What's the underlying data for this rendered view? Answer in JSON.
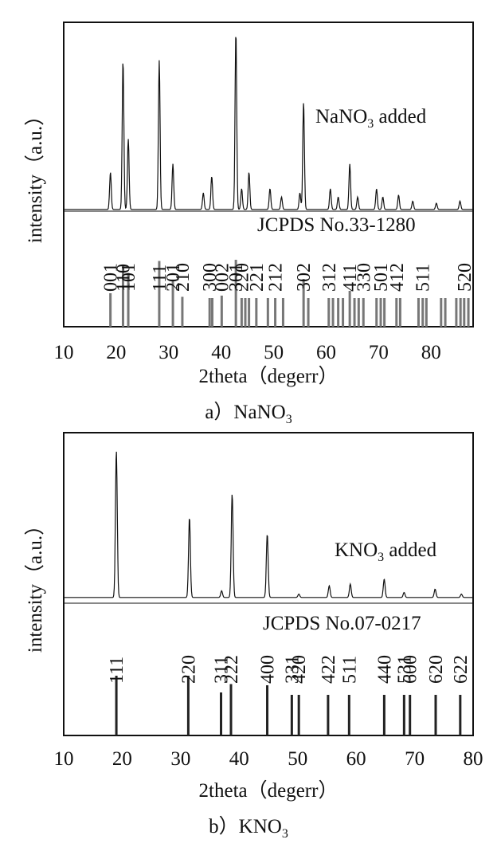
{
  "figure": {
    "panels": [
      {
        "caption_prefix": "a）",
        "caption_formula": "NaNO",
        "caption_sub": "3"
      },
      {
        "caption_prefix": "b）",
        "caption_formula": "KNO",
        "caption_sub": "3"
      }
    ]
  },
  "chart_data": [
    {
      "type": "line",
      "xlabel": "2theta（degerr）",
      "ylabel": "intensity（a.u.）",
      "xlim": [
        10,
        88
      ],
      "xticks": [
        10,
        20,
        30,
        40,
        50,
        60,
        70,
        80
      ],
      "ylim": [
        0,
        1
      ],
      "series": [
        {
          "name": "NaNO3 added",
          "label_formula": "NaNO",
          "label_sub": "3",
          "label_suffix": " added",
          "baseline": 0.02,
          "peaks": [
            {
              "x": 18.9,
              "y": 0.18
            },
            {
              "x": 21.3,
              "y": 0.72
            },
            {
              "x": 22.3,
              "y": 0.34
            },
            {
              "x": 28.2,
              "y": 0.72
            },
            {
              "x": 30.8,
              "y": 0.22
            },
            {
              "x": 36.6,
              "y": 0.08
            },
            {
              "x": 38.2,
              "y": 0.16
            },
            {
              "x": 42.8,
              "y": 0.86
            },
            {
              "x": 43.9,
              "y": 0.1
            },
            {
              "x": 45.3,
              "y": 0.18
            },
            {
              "x": 49.3,
              "y": 0.1
            },
            {
              "x": 51.5,
              "y": 0.06
            },
            {
              "x": 55.0,
              "y": 0.08
            },
            {
              "x": 55.7,
              "y": 0.52
            },
            {
              "x": 60.8,
              "y": 0.1
            },
            {
              "x": 62.3,
              "y": 0.06
            },
            {
              "x": 64.5,
              "y": 0.22
            },
            {
              "x": 66.0,
              "y": 0.06
            },
            {
              "x": 69.6,
              "y": 0.1
            },
            {
              "x": 70.8,
              "y": 0.06
            },
            {
              "x": 73.8,
              "y": 0.07
            },
            {
              "x": 76.5,
              "y": 0.04
            },
            {
              "x": 81.0,
              "y": 0.03
            },
            {
              "x": 85.5,
              "y": 0.04
            }
          ]
        }
      ],
      "reference": {
        "label": "JCPDS No.33-1280",
        "lines": [
          {
            "x": 18.9,
            "h": 0.28,
            "hkl": "001"
          },
          {
            "x": 21.3,
            "h": 0.52,
            "hkl": "110"
          },
          {
            "x": 22.3,
            "h": 0.45,
            "hkl": "101"
          },
          {
            "x": 28.2,
            "h": 0.55,
            "hkl": "111"
          },
          {
            "x": 30.8,
            "h": 0.38,
            "hkl": "201"
          },
          {
            "x": 32.6,
            "h": 0.25,
            "hkl": "210"
          },
          {
            "x": 37.8,
            "h": 0.24,
            "hkl": "300"
          },
          {
            "x": 38.3,
            "h": 0.24
          },
          {
            "x": 40.1,
            "h": 0.26,
            "hkl": "002"
          },
          {
            "x": 42.8,
            "h": 0.56,
            "hkl": "301"
          },
          {
            "x": 43.9,
            "h": 0.24,
            "hkl": "220"
          },
          {
            "x": 44.6,
            "h": 0.24
          },
          {
            "x": 45.3,
            "h": 0.24
          },
          {
            "x": 46.7,
            "h": 0.24,
            "hkl": "221"
          },
          {
            "x": 48.9,
            "h": 0.24
          },
          {
            "x": 50.3,
            "h": 0.24,
            "hkl": "212"
          },
          {
            "x": 51.8,
            "h": 0.24
          },
          {
            "x": 55.7,
            "h": 0.4,
            "hkl": "302"
          },
          {
            "x": 56.6,
            "h": 0.24
          },
          {
            "x": 60.5,
            "h": 0.24,
            "hkl": "312"
          },
          {
            "x": 61.3,
            "h": 0.24
          },
          {
            "x": 62.3,
            "h": 0.24
          },
          {
            "x": 63.2,
            "h": 0.24
          },
          {
            "x": 64.5,
            "h": 0.3,
            "hkl": "411"
          },
          {
            "x": 65.4,
            "h": 0.24
          },
          {
            "x": 66.2,
            "h": 0.24
          },
          {
            "x": 67.1,
            "h": 0.24,
            "hkl": "330"
          },
          {
            "x": 69.6,
            "h": 0.24
          },
          {
            "x": 70.4,
            "h": 0.24,
            "hkl": "501"
          },
          {
            "x": 71.1,
            "h": 0.24
          },
          {
            "x": 73.4,
            "h": 0.24,
            "hkl": "412"
          },
          {
            "x": 74.1,
            "h": 0.24
          },
          {
            "x": 77.6,
            "h": 0.24
          },
          {
            "x": 78.4,
            "h": 0.24,
            "hkl": "511"
          },
          {
            "x": 79.1,
            "h": 0.24
          },
          {
            "x": 81.9,
            "h": 0.24
          },
          {
            "x": 82.7,
            "h": 0.24
          },
          {
            "x": 84.8,
            "h": 0.24
          },
          {
            "x": 85.6,
            "h": 0.24
          },
          {
            "x": 86.3,
            "h": 0.24,
            "hkl": "520"
          },
          {
            "x": 87.1,
            "h": 0.24
          }
        ]
      }
    },
    {
      "type": "line",
      "xlabel": "2theta（degerr）",
      "ylabel": "intensity（a.u.）",
      "xlim": [
        10,
        80
      ],
      "xticks": [
        10,
        20,
        30,
        40,
        50,
        60,
        70,
        80
      ],
      "ylim": [
        0,
        1
      ],
      "series": [
        {
          "name": "KNO3 added",
          "label_formula": "KNO",
          "label_sub": "3",
          "label_suffix": " added",
          "baseline": 0.02,
          "peaks": [
            {
              "x": 19.0,
              "y": 0.88
            },
            {
              "x": 31.5,
              "y": 0.48
            },
            {
              "x": 37.0,
              "y": 0.04
            },
            {
              "x": 38.8,
              "y": 0.62
            },
            {
              "x": 44.8,
              "y": 0.38
            },
            {
              "x": 50.2,
              "y": 0.02
            },
            {
              "x": 55.4,
              "y": 0.07
            },
            {
              "x": 59.0,
              "y": 0.08
            },
            {
              "x": 64.8,
              "y": 0.11
            },
            {
              "x": 68.2,
              "y": 0.03
            },
            {
              "x": 73.5,
              "y": 0.05
            },
            {
              "x": 78.0,
              "y": 0.02
            }
          ]
        }
      ],
      "reference": {
        "label": "JCPDS No.07-0217",
        "lines": [
          {
            "x": 19.0,
            "h": 0.5,
            "hkl": "111"
          },
          {
            "x": 31.3,
            "h": 0.5,
            "hkl": "220"
          },
          {
            "x": 36.9,
            "h": 0.36,
            "hkl": "311"
          },
          {
            "x": 38.6,
            "h": 0.43,
            "hkl": "222"
          },
          {
            "x": 44.8,
            "h": 0.42,
            "hkl": "400"
          },
          {
            "x": 49.0,
            "h": 0.34,
            "hkl": "331"
          },
          {
            "x": 50.2,
            "h": 0.34,
            "hkl": "420"
          },
          {
            "x": 55.2,
            "h": 0.34,
            "hkl": "422"
          },
          {
            "x": 58.8,
            "h": 0.34,
            "hkl": "511"
          },
          {
            "x": 64.8,
            "h": 0.34,
            "hkl": "440"
          },
          {
            "x": 68.2,
            "h": 0.34,
            "hkl": "531"
          },
          {
            "x": 69.2,
            "h": 0.34,
            "hkl": "600"
          },
          {
            "x": 73.6,
            "h": 0.34,
            "hkl": "620"
          },
          {
            "x": 77.8,
            "h": 0.34,
            "hkl": "622"
          }
        ]
      }
    }
  ]
}
